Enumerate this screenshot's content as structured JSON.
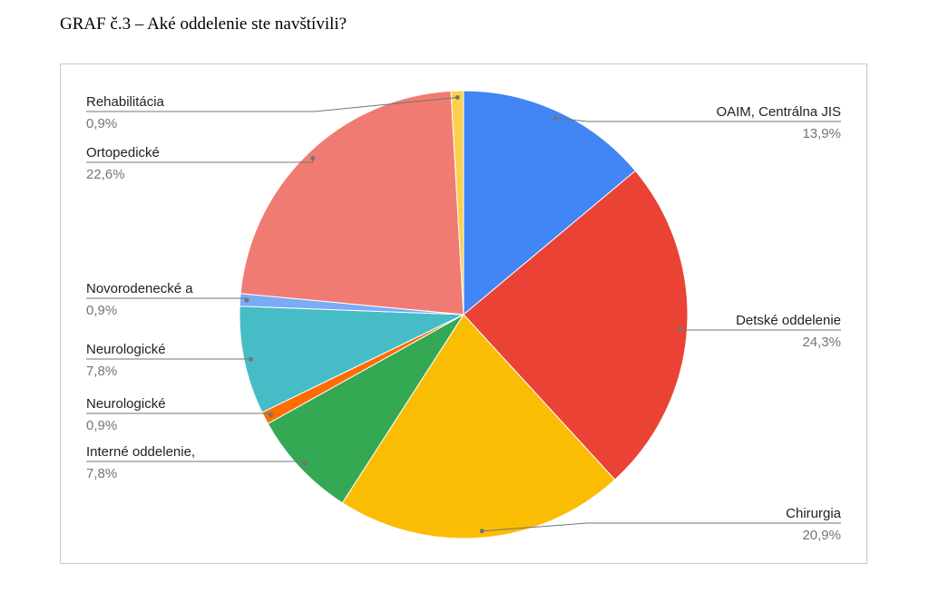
{
  "document": {
    "caption": "GRAF č.3 – Aké oddelenie ste navštívili?"
  },
  "chart_data": {
    "type": "pie",
    "title": "",
    "slices": [
      {
        "label": "OAIM, Centrálna JIS",
        "value": 13.9,
        "value_label": "13,9%",
        "color": "#4285f4"
      },
      {
        "label": "Detské oddelenie",
        "value": 24.3,
        "value_label": "24,3%",
        "color": "#ea4335"
      },
      {
        "label": "Chirurgia",
        "value": 20.9,
        "value_label": "20,9%",
        "color": "#fbbc04"
      },
      {
        "label": "Interné oddelenie,",
        "value": 7.8,
        "value_label": "7,8%",
        "color": "#34a853"
      },
      {
        "label": "Neurologické",
        "value": 0.9,
        "value_label": "0,9%",
        "color": "#ff6d01"
      },
      {
        "label": "Neurologické",
        "value": 7.8,
        "value_label": "7,8%",
        "color": "#46bdc6"
      },
      {
        "label": "Novorodenecké a",
        "value": 0.9,
        "value_label": "0,9%",
        "color": "#7baaf7"
      },
      {
        "label": "Ortopedické",
        "value": 22.6,
        "value_label": "22,6%",
        "color": "#f07b72"
      },
      {
        "label": "Rehabilitácia",
        "value": 0.9,
        "value_label": "0,9%",
        "color": "#fcd04f"
      }
    ],
    "start_angle": "top",
    "direction": "clockwise",
    "legend": "none (leader-line labels)",
    "colors": {
      "label_text": "#222222",
      "value_text": "#757575",
      "leader_line": "#757575",
      "frame": "#c9c9c9"
    }
  }
}
